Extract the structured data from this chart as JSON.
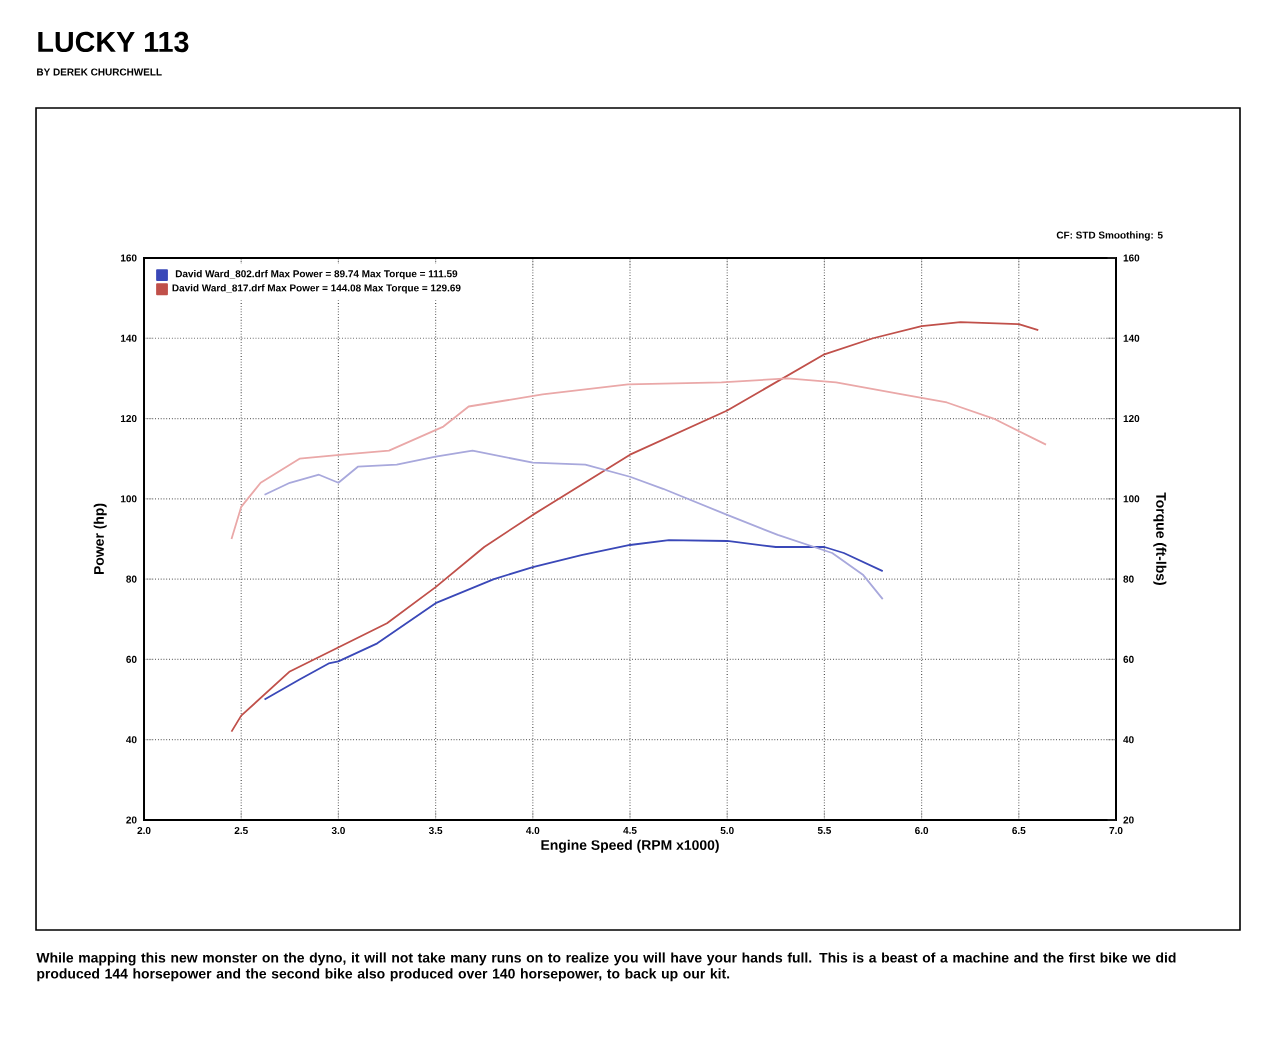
{
  "chart_data": {
    "type": "line",
    "title": "LUCKY 113",
    "subtitle": "BY DEREK CHURCHWELL",
    "xlabel": "Engine Speed (RPM x1000)",
    "ylabel": "Power (hp)",
    "y2label": "Torque (ft-lbs)",
    "annotations": [
      "CF: STD  Smoothing: 5",
      "While mapping this new monster on the dyno, it will not take many runs on to realize you will have your hands full. This is a beast of a machine and the first bike we did produced 144 horsepower and the second bike also produced over 140 horsepower, to back up our kit."
    ],
    "series": [
      {
        "name": "David Ward_802.drf Max Power = 89.74   Max Torque = 111.59",
        "color": "#3a48b8",
        "x": [
          2.62,
          2.8,
          2.95,
          3.0,
          3.2,
          3.5,
          3.8,
          4.0,
          4.25,
          4.5,
          4.7,
          5.0,
          5.25,
          5.5,
          5.6,
          5.8
        ],
        "values": [
          50,
          55,
          59,
          59.5,
          64,
          74,
          80,
          83,
          86,
          88.5,
          89.7,
          89.5,
          88,
          88,
          86.5,
          82
        ]
      },
      {
        "name": "David Ward_817.drf Max Power = 144.08   Max Torque = 129.69",
        "color": "#c0504a",
        "x": [
          2.45,
          2.5,
          2.75,
          3.0,
          3.25,
          3.5,
          3.75,
          4.0,
          4.5,
          5.0,
          5.5,
          5.75,
          6.0,
          6.2,
          6.5,
          6.6
        ],
        "values": [
          42,
          46,
          57,
          63,
          69,
          78,
          88,
          96,
          111,
          122,
          136,
          140,
          143,
          144,
          143.5,
          142
        ]
      },
      {
        "axis": "y2",
        "color": "#a8a8dc",
        "x": [
          2.62,
          2.75,
          2.9,
          3.0,
          3.1,
          3.3,
          3.5,
          3.69,
          4.0,
          4.27,
          4.5,
          4.67,
          5.0,
          5.26,
          5.54,
          5.7,
          5.8
        ],
        "values": [
          101,
          104,
          106,
          104,
          108,
          108.5,
          110.5,
          112,
          109,
          108.5,
          105.5,
          102.5,
          96,
          91,
          86.5,
          81,
          75
        ]
      },
      {
        "axis": "y2",
        "color": "#eaa8a8",
        "x": [
          2.45,
          2.5,
          2.6,
          2.8,
          3.02,
          3.26,
          3.54,
          3.67,
          4.05,
          4.49,
          4.97,
          5.31,
          5.56,
          5.9,
          6.13,
          6.37,
          6.64
        ],
        "values": [
          90,
          98,
          104,
          110,
          111,
          112,
          118,
          123,
          126,
          128.5,
          129,
          130,
          129,
          126,
          124,
          120,
          113.5
        ]
      }
    ],
    "xlim": [
      2,
      7
    ],
    "ylim": [
      20,
      160
    ],
    "y2lim": [
      20,
      160
    ],
    "xticks": [
      {
        "value": 2,
        "label": "2.0"
      },
      {
        "value": 2.5,
        "label": "2.5"
      },
      {
        "value": 3,
        "label": "3.0"
      },
      {
        "value": 3.5,
        "label": "3.5"
      },
      {
        "value": 4,
        "label": "4.0"
      },
      {
        "value": 4.5,
        "label": "4.5"
      },
      {
        "value": 5,
        "label": "5.0"
      },
      {
        "value": 5.5,
        "label": "5.5"
      },
      {
        "value": 6,
        "label": "6.0"
      },
      {
        "value": 6.5,
        "label": "6.5"
      },
      {
        "value": 7,
        "label": "7.0"
      }
    ],
    "yticks": [
      20,
      40,
      60,
      80,
      100,
      120,
      140,
      160
    ],
    "y2ticks": [
      20,
      40,
      60,
      80,
      100,
      120,
      140,
      160
    ],
    "grid": true,
    "legend": "top left"
  }
}
